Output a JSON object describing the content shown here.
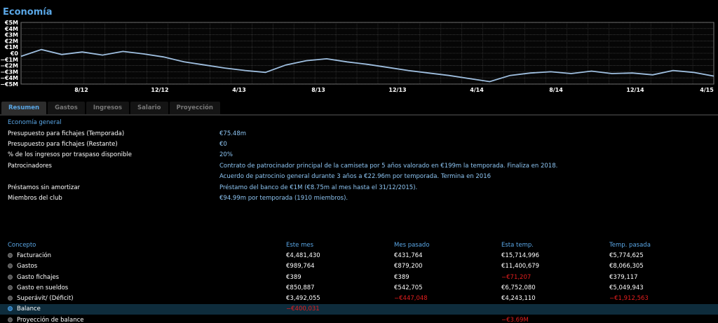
{
  "page_title": "Economía",
  "chart_data": {
    "type": "line",
    "y_ticks": [
      "€5M",
      "€4M",
      "€3M",
      "€2M",
      "€1M",
      "€0",
      "−€1M",
      "−€2M",
      "−€3M",
      "−€4M",
      "−€5M"
    ],
    "x_ticks": [
      "8/12",
      "12/12",
      "4/13",
      "8/13",
      "12/13",
      "4/14",
      "8/14",
      "12/14",
      "4/15"
    ],
    "ylim": [
      -5,
      5
    ],
    "grid": true,
    "color": "#9fbfe0",
    "series": [
      {
        "values": [
          -0.5,
          0.6,
          -0.2,
          0.2,
          -0.3,
          0.3,
          -0.1,
          -0.6,
          -1.4,
          -1.9,
          -2.4,
          -2.8,
          -3.1,
          -1.9,
          -1.2,
          -0.9,
          -1.4,
          -1.8,
          -2.3,
          -2.8,
          -3.2,
          -3.6,
          -4.1,
          -4.6,
          -3.6,
          -3.2,
          -3.0,
          -3.3,
          -2.9,
          -3.3,
          -3.2,
          -3.5,
          -2.8,
          -3.1,
          -3.7
        ]
      }
    ]
  },
  "tabs": [
    {
      "label": "Resumen",
      "active": true
    },
    {
      "label": "Gastos",
      "active": false
    },
    {
      "label": "Ingresos",
      "active": false
    },
    {
      "label": "Salario",
      "active": false
    },
    {
      "label": "Proyección",
      "active": false
    }
  ],
  "general": {
    "section_title": "Economía general",
    "rows": [
      {
        "label": "Presupuesto para fichajes (Temporada)",
        "value": "€75.48m"
      },
      {
        "label": "Presupuesto para fichajes (Restante)",
        "value": "€0"
      },
      {
        "label": "% de los ingresos por traspaso disponible",
        "value": "20%"
      },
      {
        "label": "Patrocinadores",
        "value": "Contrato de patrocinador principal de la camiseta por 5 años valorado en €199m la temporada. Finaliza en 2018."
      },
      {
        "label": "",
        "value": "Acuerdo de patrocinio general durante 3 años a €22.96m por temporada. Termina en 2016"
      },
      {
        "label": "Préstamos sin amortizar",
        "value": "Préstamo del banco de €1M (€8.75m al mes hasta el 31/12/2015)."
      },
      {
        "label": "Miembros del club",
        "value": "€94.99m por temporada (1910 miembros)."
      }
    ]
  },
  "finance": {
    "headers": [
      "Concepto",
      "Este mes",
      "Mes pasado",
      "Esta temp.",
      "Temp. pasada"
    ],
    "rows": [
      {
        "concept": "Facturación",
        "values": [
          "€4,481,430",
          "€431,764",
          "€15,714,996",
          "€5,774,625"
        ],
        "neg": [
          false,
          false,
          false,
          false
        ],
        "highlight": false
      },
      {
        "concept": "Gastos",
        "values": [
          "€989,764",
          "€879,200",
          "€11,400,679",
          "€8,066,305"
        ],
        "neg": [
          false,
          false,
          false,
          false
        ],
        "highlight": false
      },
      {
        "concept": "Gasto fichajes",
        "values": [
          "€389",
          "€389",
          "−€71,207",
          "€379,117"
        ],
        "neg": [
          false,
          false,
          true,
          false
        ],
        "highlight": false
      },
      {
        "concept": "Gasto en sueldos",
        "values": [
          "€850,887",
          "€542,705",
          "€6,752,080",
          "€5,049,943"
        ],
        "neg": [
          false,
          false,
          false,
          false
        ],
        "highlight": false
      },
      {
        "concept": "Superávit/ (Déficit)",
        "values": [
          "€3,492,055",
          "−€447,048",
          "€4,243,110",
          "−€1,912,563"
        ],
        "neg": [
          false,
          true,
          false,
          true
        ],
        "highlight": false
      },
      {
        "concept": "Balance",
        "values": [
          "−€400,031",
          "",
          "",
          ""
        ],
        "neg": [
          true,
          false,
          false,
          false
        ],
        "highlight": true
      },
      {
        "concept": "Proyección de balance",
        "values": [
          "",
          "",
          "−€3.69M",
          ""
        ],
        "neg": [
          false,
          false,
          true,
          false
        ],
        "highlight": false
      }
    ]
  }
}
